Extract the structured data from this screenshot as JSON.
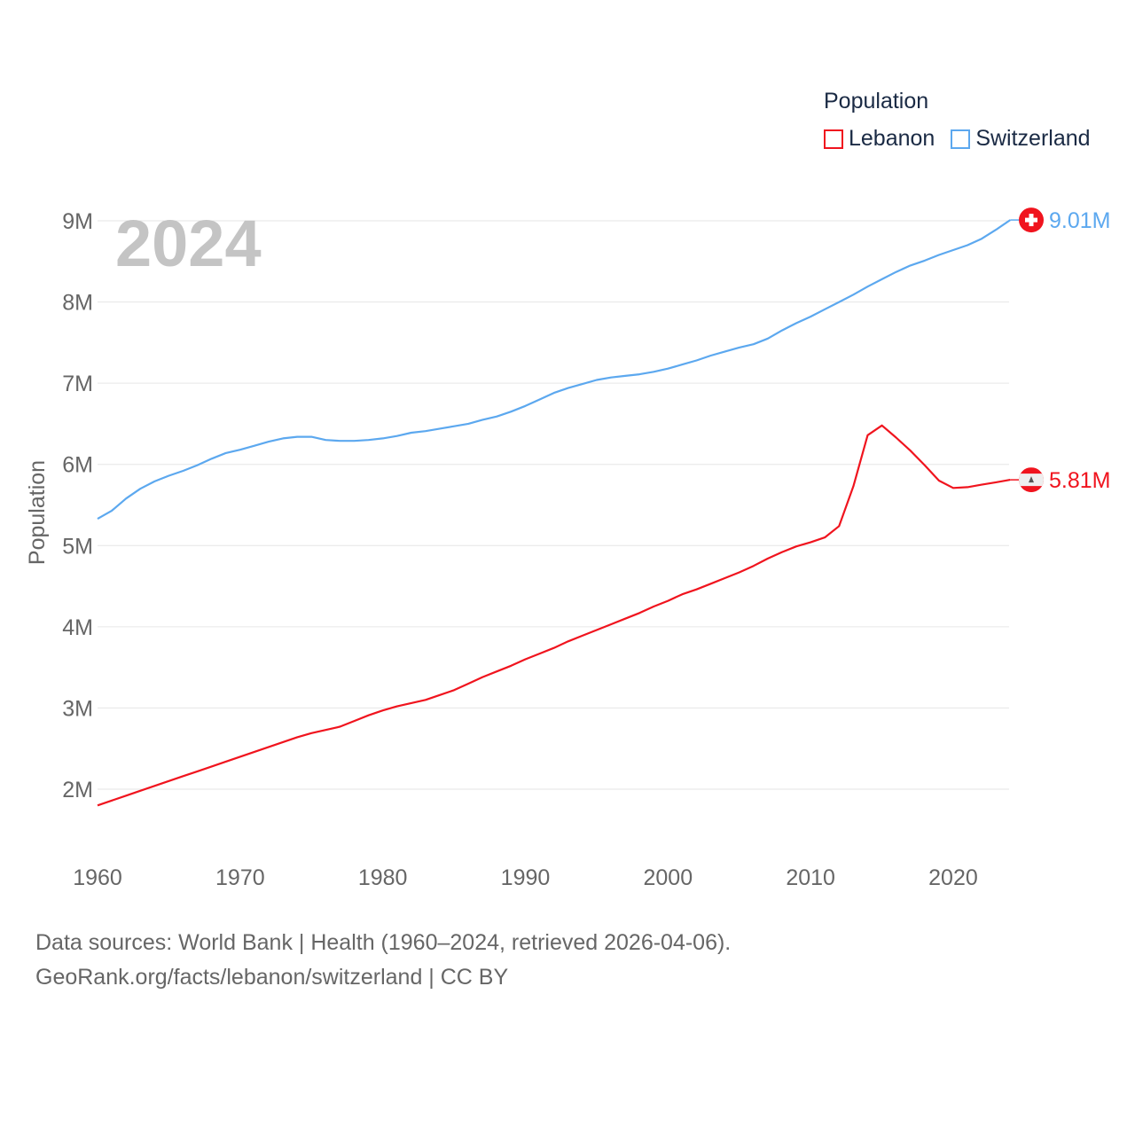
{
  "chart_data": {
    "type": "line",
    "title": "Population",
    "year_label": "2024",
    "ylabel": "Population",
    "xlabel": "",
    "xlim": [
      1960,
      2024
    ],
    "ylim": [
      1.5,
      9.3
    ],
    "x_ticks": [
      "1960",
      "1970",
      "1980",
      "1990",
      "2000",
      "2010",
      "2020"
    ],
    "y_ticks": [
      {
        "v": 2,
        "label": "2M"
      },
      {
        "v": 3,
        "label": "3M"
      },
      {
        "v": 4,
        "label": "4M"
      },
      {
        "v": 5,
        "label": "5M"
      },
      {
        "v": 6,
        "label": "6M"
      },
      {
        "v": 7,
        "label": "7M"
      },
      {
        "v": 8,
        "label": "8M"
      },
      {
        "v": 9,
        "label": "9M"
      }
    ],
    "grid": true,
    "legend_position": "top-right",
    "x_start": 1960,
    "series": [
      {
        "name": "Lebanon",
        "color": "#f0141e",
        "end_label": "5.81M",
        "flag": "lebanon-flag",
        "values": [
          1.8,
          1.86,
          1.92,
          1.98,
          2.04,
          2.1,
          2.16,
          2.22,
          2.28,
          2.34,
          2.4,
          2.46,
          2.52,
          2.58,
          2.64,
          2.69,
          2.73,
          2.77,
          2.84,
          2.91,
          2.97,
          3.02,
          3.06,
          3.1,
          3.16,
          3.22,
          3.3,
          3.38,
          3.45,
          3.52,
          3.6,
          3.67,
          3.74,
          3.82,
          3.89,
          3.96,
          4.03,
          4.1,
          4.17,
          4.25,
          4.32,
          4.4,
          4.46,
          4.53,
          4.6,
          4.67,
          4.75,
          4.84,
          4.92,
          4.99,
          5.04,
          5.1,
          5.24,
          5.73,
          6.36,
          6.48,
          6.33,
          6.17,
          5.99,
          5.8,
          5.71,
          5.72,
          5.75,
          5.78,
          5.81
        ]
      },
      {
        "name": "Switzerland",
        "color": "#5ca8ef",
        "end_label": "9.01M",
        "flag": "switzerland-flag",
        "values": [
          5.33,
          5.43,
          5.58,
          5.7,
          5.79,
          5.86,
          5.92,
          5.99,
          6.07,
          6.14,
          6.18,
          6.23,
          6.28,
          6.32,
          6.34,
          6.34,
          6.3,
          6.29,
          6.29,
          6.3,
          6.32,
          6.35,
          6.39,
          6.41,
          6.44,
          6.47,
          6.5,
          6.55,
          6.59,
          6.65,
          6.72,
          6.8,
          6.88,
          6.94,
          6.99,
          7.04,
          7.07,
          7.09,
          7.11,
          7.14,
          7.18,
          7.23,
          7.28,
          7.34,
          7.39,
          7.44,
          7.48,
          7.55,
          7.65,
          7.74,
          7.82,
          7.91,
          8.0,
          8.09,
          8.19,
          8.28,
          8.37,
          8.45,
          8.51,
          8.58,
          8.64,
          8.7,
          8.78,
          8.89,
          9.01
        ]
      }
    ]
  },
  "footer": {
    "line1": "Data sources: World Bank | Health (1960–2024, retrieved 2026-04-06).",
    "line2": "GeoRank.org/facts/lebanon/switzerland | CC BY"
  }
}
